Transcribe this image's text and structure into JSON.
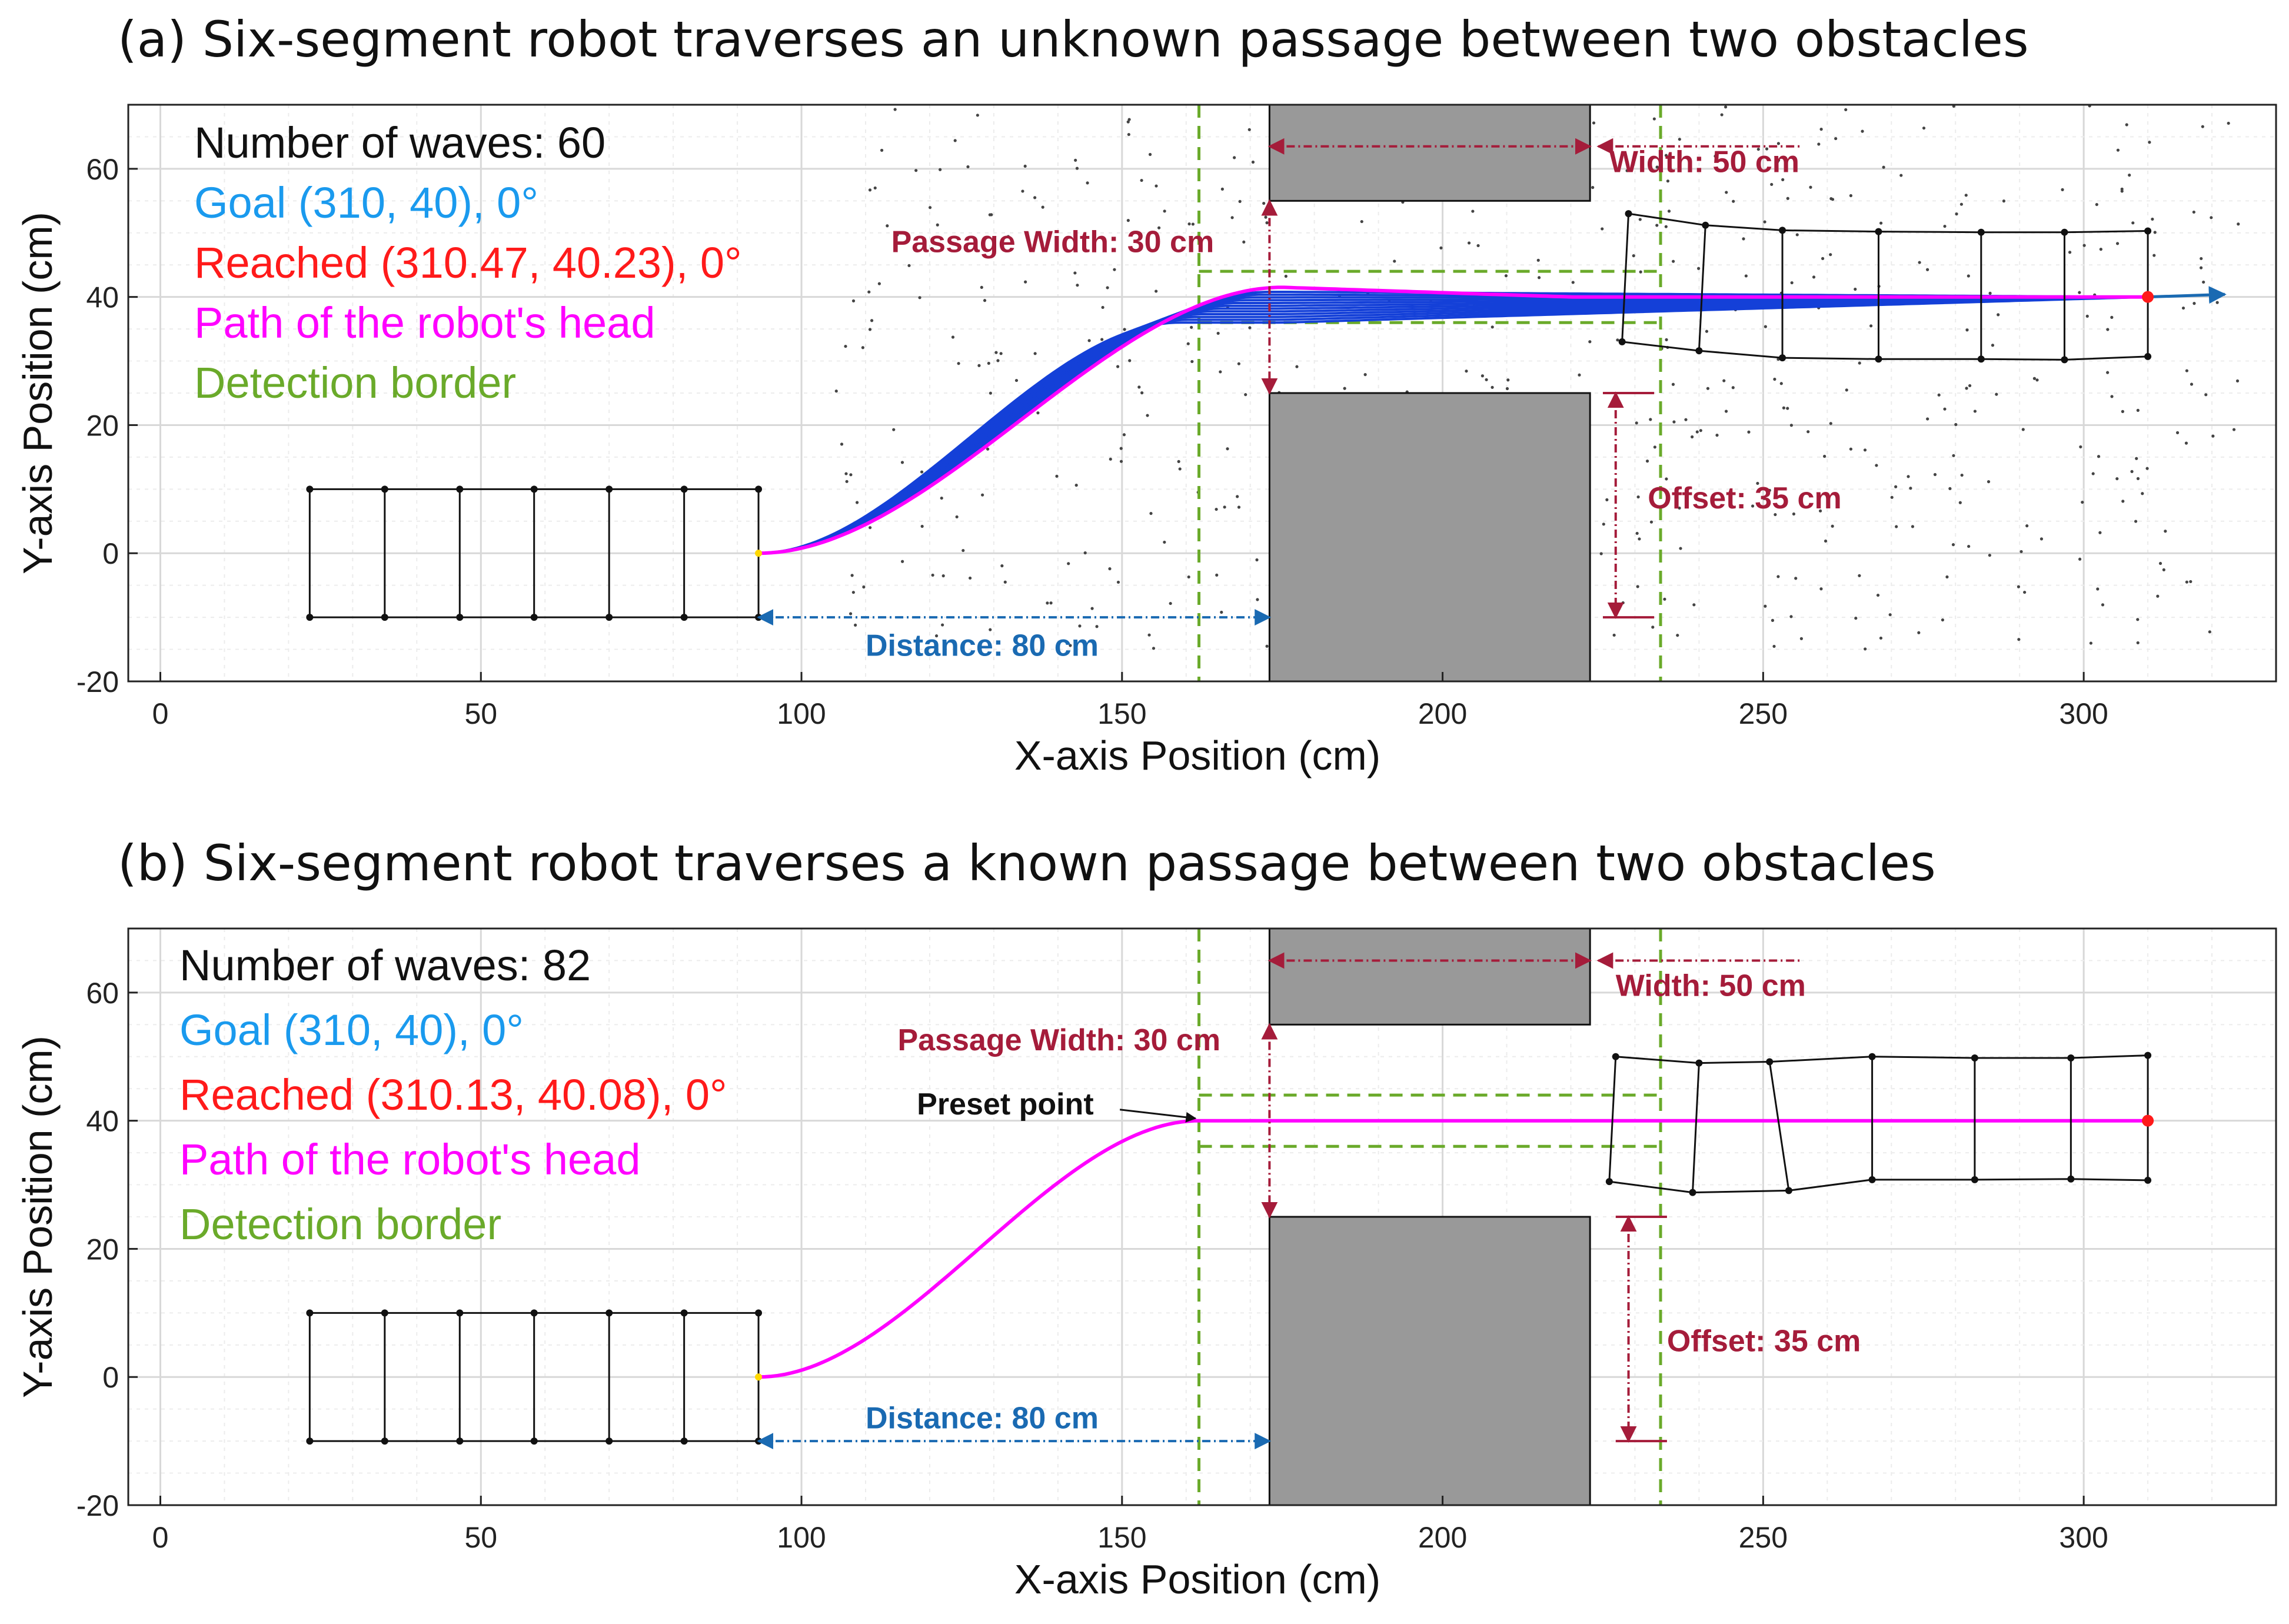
{
  "chart_data": [
    {
      "type": "line",
      "title": "(a) Six-segment robot traverses an unknown passage between two obstacles",
      "xlabel": "X-axis Position (cm)",
      "ylabel": "Y-axis Position (cm)",
      "xlim": [
        -5,
        330
      ],
      "ylim": [
        -20,
        70
      ],
      "xticks": [
        0,
        50,
        100,
        150,
        200,
        250,
        300
      ],
      "yticks": [
        -20,
        0,
        20,
        40,
        60
      ],
      "grid": true,
      "legend_placement": "top-left",
      "legend": [
        {
          "text": "Number of waves: 60",
          "color": "#111111"
        },
        {
          "text": "Goal (310, 40), 0°",
          "color": "#1a9aee"
        },
        {
          "text": "Reached (310.47, 40.23), 0°",
          "color": "#ff1a1a"
        },
        {
          "text": "Path of the robot's head",
          "color": "#ff00ff"
        },
        {
          "text": "Detection border",
          "color": "#6aaa2a"
        }
      ],
      "obstacles": [
        {
          "x": [
            173,
            223
          ],
          "y": [
            55,
            75
          ]
        },
        {
          "x": [
            173,
            223
          ],
          "y": [
            -20,
            25
          ]
        }
      ],
      "detection_border": {
        "x": [
          162,
          234
        ],
        "y_low": 36,
        "y_high": 44
      },
      "start_robot": {
        "x": [
          23.3,
          35,
          46.7,
          58.3,
          70,
          81.7,
          93.3
        ],
        "y_top": 10,
        "y_bottom": -10
      },
      "end_robot": {
        "top": [
          [
            229,
            53
          ],
          [
            241,
            51.2
          ],
          [
            253,
            50.4
          ],
          [
            268,
            50.2
          ],
          [
            284,
            50.1
          ],
          [
            297,
            50.1
          ],
          [
            310,
            50.3
          ]
        ],
        "bottom": [
          [
            228,
            33
          ],
          [
            240,
            31.6
          ],
          [
            253,
            30.5
          ],
          [
            268,
            30.3
          ],
          [
            284,
            30.3
          ],
          [
            297,
            30.2
          ],
          [
            310,
            30.7
          ]
        ]
      },
      "blue_trajectories": {
        "count": 12,
        "shift_min": 2,
        "shift_max": 16,
        "plateau_min": 36,
        "plateau_max": 40.8
      },
      "head_path": {
        "start": [
          93.3,
          0
        ],
        "end": [
          310,
          40
        ],
        "transition": [
          93.3,
          175
        ],
        "plateau": 41.5
      },
      "goal_arrow": {
        "from": [
          310,
          40
        ],
        "to": [
          322,
          40.4
        ]
      },
      "annotations": [
        {
          "text": "Width: 50 cm",
          "color": "#a51c3a",
          "at": [
            226,
            59.5
          ],
          "line": [
            173,
            223,
            63.5
          ]
        },
        {
          "text": "Passage Width: 30 cm",
          "color": "#a51c3a",
          "at": [
            114,
            47
          ],
          "span": [
            173,
            25,
            55
          ]
        },
        {
          "text": "Offset: 35 cm",
          "color": "#a51c3a",
          "at": [
            232,
            7
          ],
          "span": [
            227,
            -10,
            25
          ]
        },
        {
          "text": "Distance: 80 cm",
          "color": "#1a6ab2",
          "at": [
            110,
            -16
          ],
          "line": [
            93.3,
            173,
            -10
          ]
        }
      ],
      "noise_region": {
        "x": [
          105,
          325
        ],
        "y": [
          -15,
          70
        ]
      }
    },
    {
      "type": "line",
      "title": "(b) Six-segment robot traverses a known passage between two obstacles",
      "xlabel": "X-axis Position (cm)",
      "ylabel": "Y-axis Position (cm)",
      "xlim": [
        -5,
        330
      ],
      "ylim": [
        -20,
        70
      ],
      "xticks": [
        0,
        50,
        100,
        150,
        200,
        250,
        300
      ],
      "yticks": [
        -20,
        0,
        20,
        40,
        60
      ],
      "grid": true,
      "legend_placement": "top-left",
      "legend": [
        {
          "text": "Number of waves: 82",
          "color": "#111111"
        },
        {
          "text": "Goal (310, 40), 0°",
          "color": "#1a9aee"
        },
        {
          "text": "Reached (310.13, 40.08), 0°",
          "color": "#ff1a1a"
        },
        {
          "text": "Path of the robot's head",
          "color": "#ff00ff"
        },
        {
          "text": "Detection border",
          "color": "#6aaa2a"
        }
      ],
      "obstacles": [
        {
          "x": [
            173,
            223
          ],
          "y": [
            55,
            75
          ]
        },
        {
          "x": [
            173,
            223
          ],
          "y": [
            -20,
            25
          ]
        }
      ],
      "detection_border": {
        "x": [
          162,
          234
        ],
        "y_low": 36,
        "y_high": 44
      },
      "start_robot": {
        "x": [
          23.3,
          35,
          46.7,
          58.3,
          70,
          81.7,
          93.3
        ],
        "y_top": 10,
        "y_bottom": -10
      },
      "end_robot": {
        "top": [
          [
            227,
            50
          ],
          [
            240,
            49
          ],
          [
            251,
            49.2
          ],
          [
            267,
            50
          ],
          [
            283,
            49.8
          ],
          [
            298,
            49.8
          ],
          [
            310,
            50.2
          ]
        ],
        "bottom": [
          [
            226,
            30.5
          ],
          [
            239,
            28.8
          ],
          [
            254,
            29.1
          ],
          [
            267,
            30.8
          ],
          [
            283,
            30.8
          ],
          [
            298,
            30.9
          ],
          [
            310,
            30.7
          ]
        ]
      },
      "head_path": {
        "start": [
          93.3,
          0
        ],
        "end": [
          310,
          40
        ],
        "transition": [
          93.3,
          162
        ],
        "plateau": 40
      },
      "preset_point": {
        "text": "Preset point",
        "point": [
          162,
          40
        ],
        "label_at": [
          118,
          41
        ]
      },
      "annotations": [
        {
          "text": "Width: 50 cm",
          "color": "#a51c3a",
          "at": [
            227,
            59.5
          ],
          "line": [
            173,
            223,
            65
          ]
        },
        {
          "text": "Passage Width: 30 cm",
          "color": "#a51c3a",
          "at": [
            115,
            51
          ],
          "span": [
            173,
            25,
            55
          ]
        },
        {
          "text": "Offset: 35 cm",
          "color": "#a51c3a",
          "at": [
            235,
            4
          ],
          "span": [
            229,
            -10,
            25
          ]
        },
        {
          "text": "Distance: 80 cm",
          "color": "#1a6ab2",
          "at": [
            110,
            -8
          ],
          "line": [
            93.3,
            173,
            -10
          ]
        }
      ]
    }
  ]
}
